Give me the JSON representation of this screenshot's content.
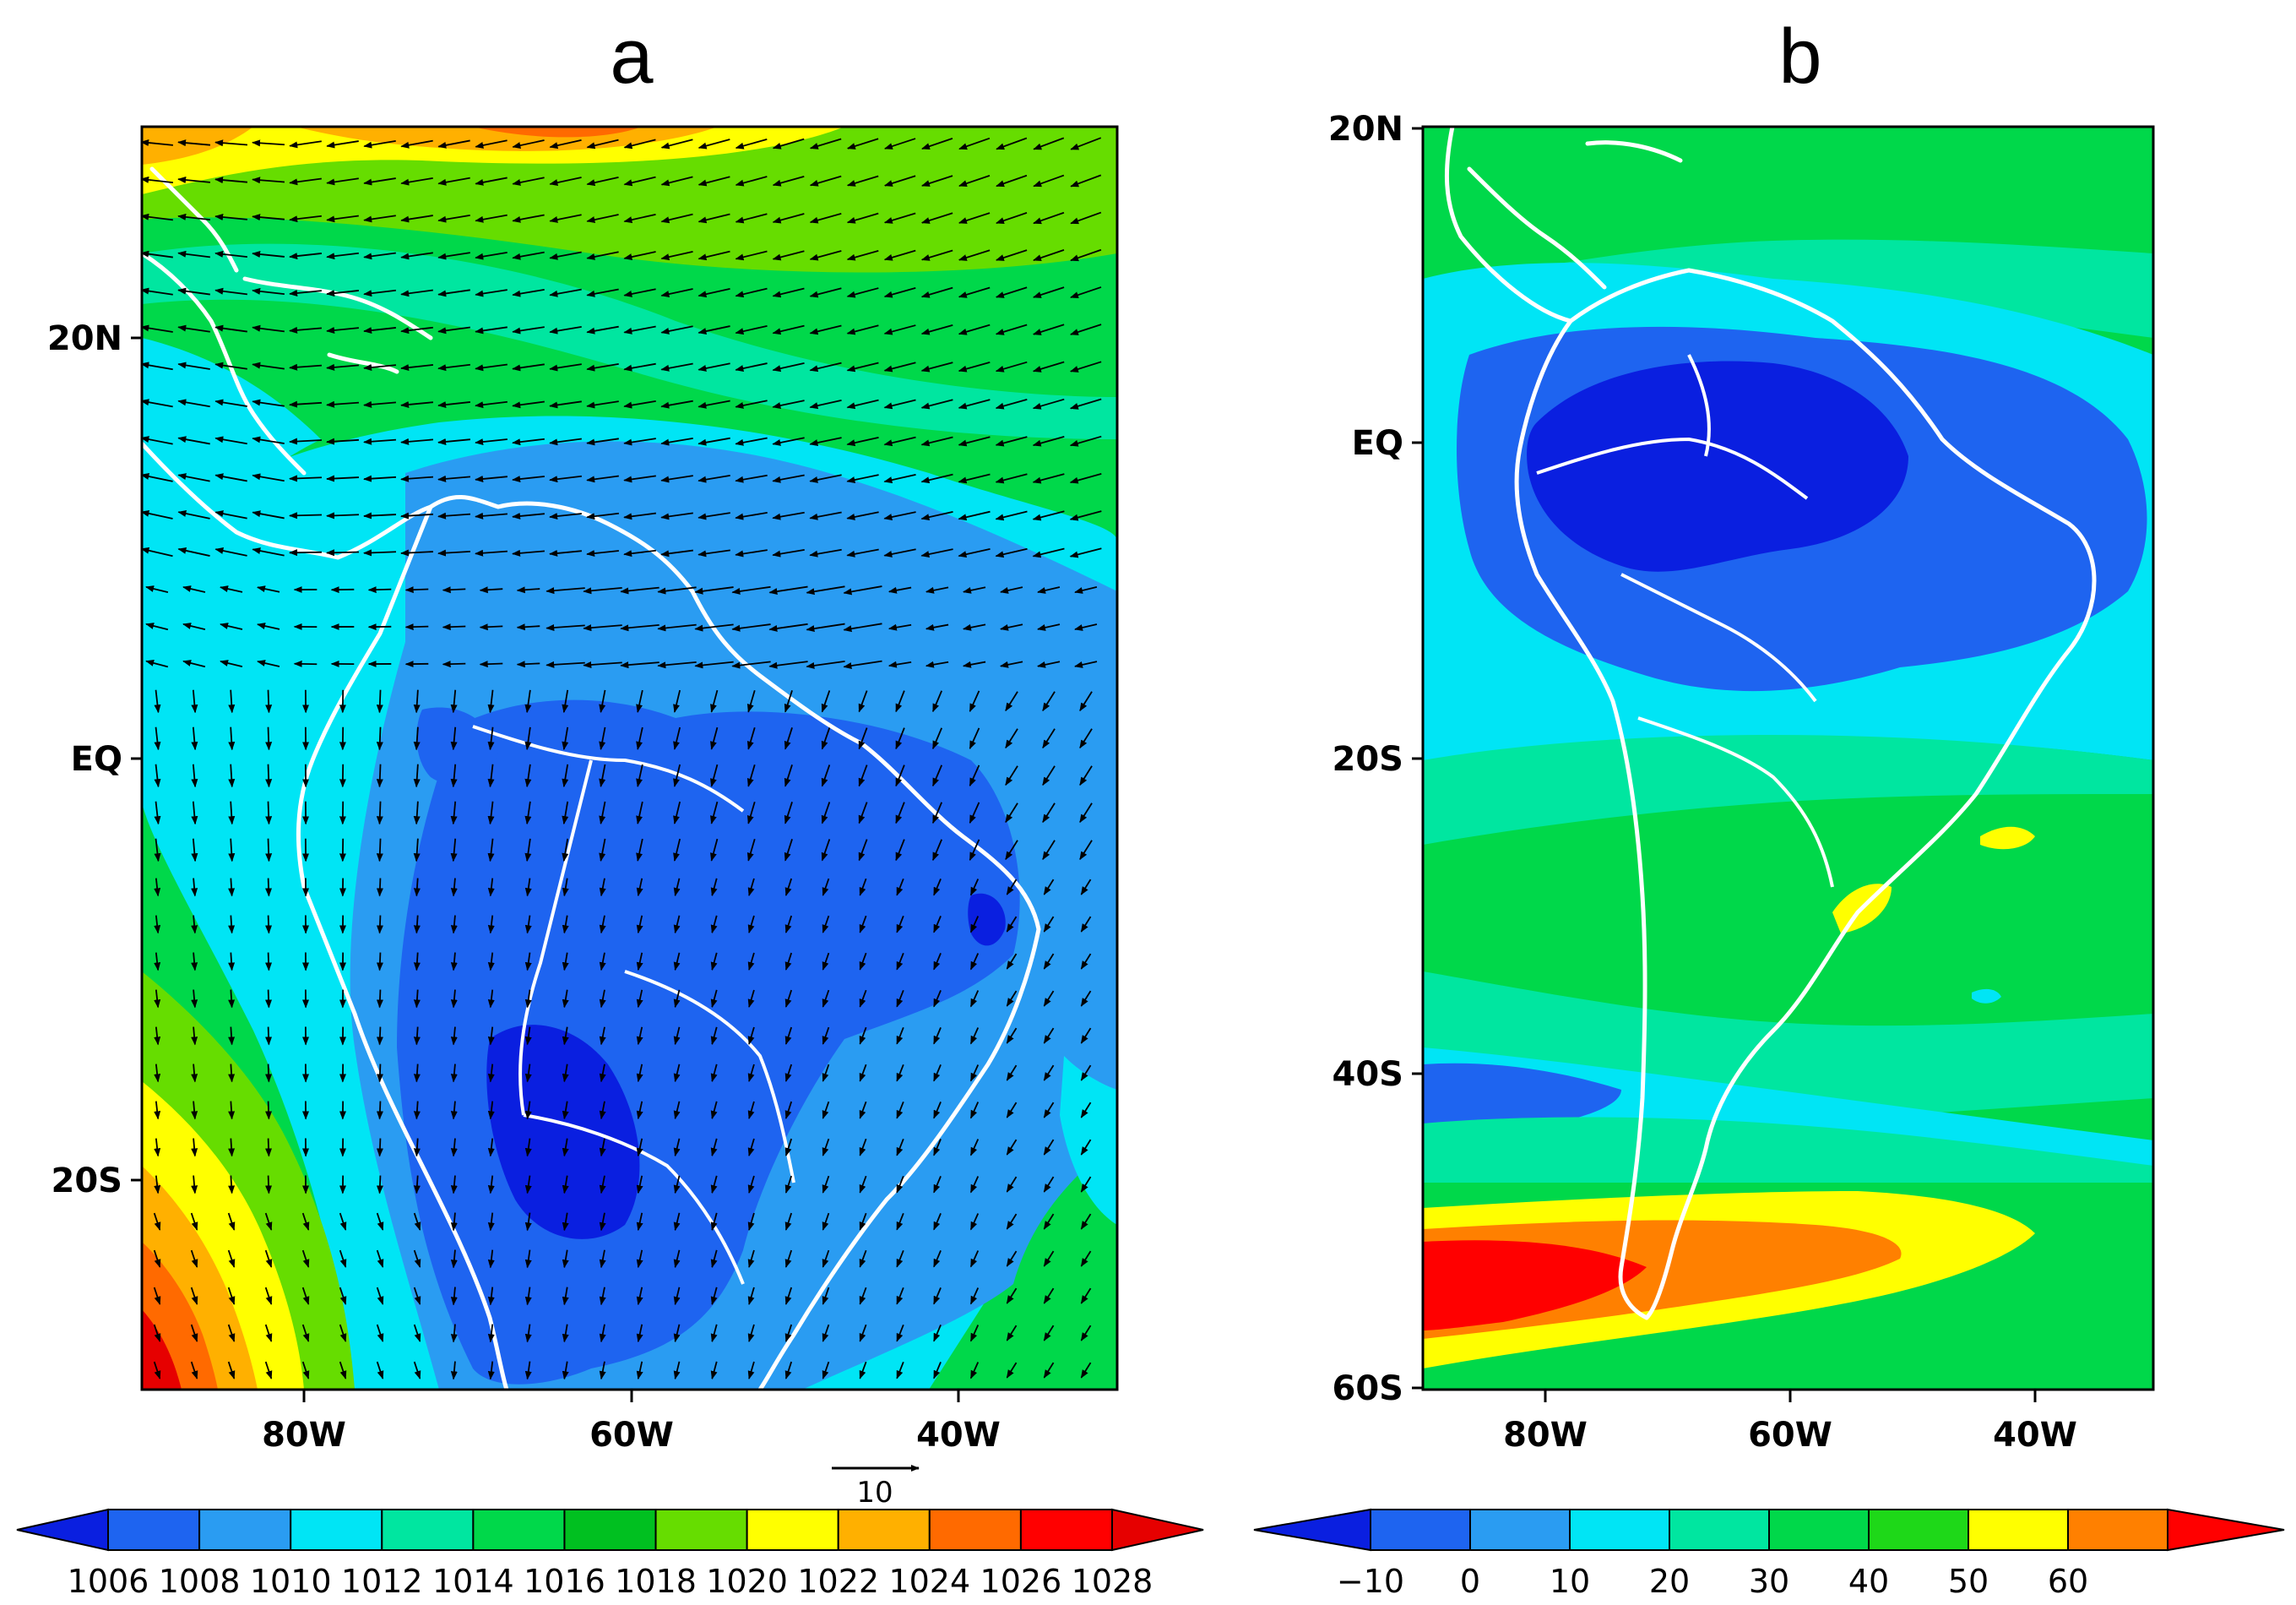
{
  "panels": [
    {
      "label": "a",
      "lat_ticks": [
        "20N",
        "EQ",
        "20S"
      ],
      "lon_ticks": [
        "80W",
        "60W",
        "40W"
      ],
      "vector_ref_value": "10",
      "colorbar_labels": [
        "1006",
        "1008",
        "1010",
        "1012",
        "1014",
        "1016",
        "1018",
        "1020",
        "1022",
        "1024",
        "1026",
        "1028"
      ],
      "colorbar_colors": [
        "#0a1fe0",
        "#1e64f0",
        "#2a9cf2",
        "#00e5f5",
        "#00e6a0",
        "#00d84a",
        "#00c020",
        "#66dd00",
        "#ffff00",
        "#ffb000",
        "#ff6a00",
        "#ff0000",
        "#e60000"
      ]
    },
    {
      "label": "b",
      "lat_ticks": [
        "20N",
        "EQ",
        "20S",
        "40S",
        "60S"
      ],
      "lon_ticks": [
        "80W",
        "60W",
        "40W"
      ],
      "colorbar_labels": [
        "−10",
        "0",
        "10",
        "20",
        "30",
        "40",
        "50",
        "60"
      ],
      "colorbar_colors": [
        "#0a1fe0",
        "#1e64f0",
        "#2a9cf2",
        "#00e5f5",
        "#00e6a0",
        "#00d84a",
        "#1ed818",
        "#ffff00",
        "#ff8000",
        "#ff0000"
      ]
    }
  ]
}
